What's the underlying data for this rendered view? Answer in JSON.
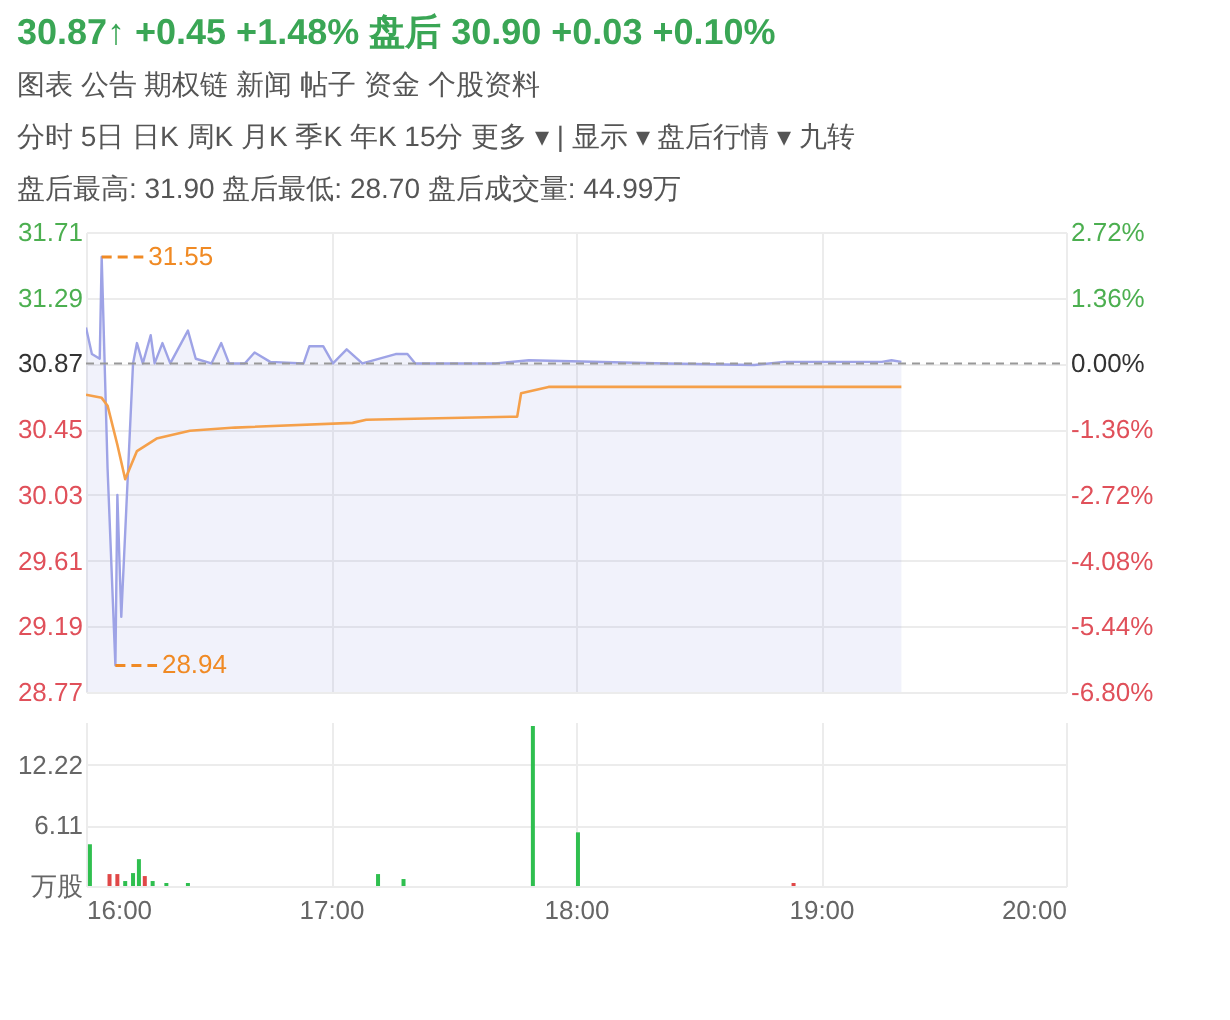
{
  "chart_data": [
    {
      "type": "line",
      "title": "30.87↑ +0.45 +1.48%   盘后 30.90 +0.03 +0.10%",
      "annotations": [
        "图表    公告    期权链    新闻    帖子    资金    个股资料",
        "分时   5日   日K   周K   月K   季K   年K   15分   更多 ▾   |   显示 ▾   盘后行情 ▾   九转",
        "盘后最高:  31.90      盘后最低:  28.70      盘后成交量:  44.99万",
        {
          "text": "31.55",
          "x": 16.064,
          "y": 31.55
        },
        {
          "text": "28.94",
          "x": 16.12,
          "y": 28.94
        }
      ],
      "xlim": [
        16,
        20
      ],
      "xticks": [
        {
          "value": 16,
          "label": null
        },
        {
          "value": 17,
          "label": null
        },
        {
          "value": 18,
          "label": null
        },
        {
          "value": 19,
          "label": null
        },
        {
          "value": 20,
          "label": null
        }
      ],
      "ylim": [
        28.77,
        31.71
      ],
      "yticks": [
        28.77,
        29.19,
        29.61,
        30.03,
        30.45,
        30.87,
        31.29,
        31.71
      ],
      "y2lim": [
        -6.8,
        2.72
      ],
      "y2ticks": [
        {
          "value": -6.8,
          "label": "-6.80%"
        },
        {
          "value": -5.44,
          "label": "-5.44%"
        },
        {
          "value": -4.08,
          "label": "-4.08%"
        },
        {
          "value": -2.72,
          "label": "-2.72%"
        },
        {
          "value": -1.36,
          "label": "-1.36%"
        },
        {
          "value": 0,
          "label": "0.00%"
        },
        {
          "value": 1.36,
          "label": "1.36%"
        },
        {
          "value": 2.72,
          "label": "2.72%"
        }
      ],
      "ref_lines": [
        {
          "axis": "y2",
          "value": 0,
          "color": "#999999",
          "line_style": "dashed"
        }
      ],
      "tick_labels": "y",
      "grid": true,
      "series": [
        {
          "type": "area",
          "color": "#9ea3e6",
          "x": [
            16.0,
            16.024,
            16.056,
            16.064,
            16.088,
            16.12,
            16.128,
            16.144,
            16.192,
            16.208,
            16.232,
            16.264,
            16.28,
            16.312,
            16.344,
            16.416,
            16.448,
            16.512,
            16.552,
            16.584,
            16.648,
            16.688,
            16.752,
            16.888,
            16.912,
            16.968,
            17.008,
            17.064,
            17.128,
            17.264,
            17.312,
            17.344,
            17.672,
            17.808,
            18.368,
            18.728,
            18.848,
            19.248,
            19.288,
            19.328
          ],
          "values": [
            31.1,
            30.93,
            30.9,
            31.55,
            30.2,
            28.94,
            30.03,
            29.25,
            30.87,
            31.0,
            30.87,
            31.05,
            30.87,
            31.0,
            30.87,
            31.08,
            30.9,
            30.87,
            31.0,
            30.87,
            30.87,
            30.94,
            30.88,
            30.87,
            30.98,
            30.98,
            30.87,
            30.96,
            30.87,
            30.93,
            30.93,
            30.87,
            30.87,
            30.89,
            30.87,
            30.86,
            30.88,
            30.88,
            30.89,
            30.88
          ]
        },
        {
          "type": "line",
          "color": "#f5a04a",
          "x": [
            16.0,
            16.064,
            16.088,
            16.128,
            16.16,
            16.208,
            16.288,
            16.424,
            16.608,
            17.088,
            17.144,
            17.76,
            17.776,
            17.888,
            19.328
          ],
          "values": [
            30.67,
            30.65,
            30.6,
            30.35,
            30.13,
            30.31,
            30.39,
            30.44,
            30.46,
            30.49,
            30.51,
            30.53,
            30.68,
            30.72,
            30.72
          ]
        }
      ]
    },
    {
      "type": "bar",
      "xlim": [
        16,
        20
      ],
      "xticks": [
        {
          "value": 16,
          "label": "16:00"
        },
        {
          "value": 17,
          "label": "17:00"
        },
        {
          "value": 18,
          "label": "18:00"
        },
        {
          "value": 19,
          "label": "19:00"
        },
        {
          "value": 20,
          "label": "20:00"
        }
      ],
      "ylim": [
        0,
        16.5
      ],
      "yticks": [
        {
          "value": 0,
          "label": "万股"
        },
        6.11,
        12.22
      ],
      "grid": true,
      "x": [
        16.016,
        16.096,
        16.128,
        16.16,
        16.192,
        16.216,
        16.24,
        16.272,
        16.328,
        16.416,
        17.192,
        17.296,
        17.824,
        18.008,
        18.888
      ],
      "values": [
        4.2,
        1.2,
        1.2,
        0.5,
        1.3,
        2.7,
        1.0,
        0.5,
        0.3,
        0.3,
        1.2,
        0.7,
        16.1,
        5.4,
        0.3
      ],
      "colors": [
        "#2fbf4f",
        "#e04848",
        "#e04848",
        "#2fbf4f",
        "#2fbf4f",
        "#2fbf4f",
        "#e04848",
        "#2fbf4f",
        "#2fbf4f",
        "#2fbf4f",
        "#2fbf4f",
        "#2fbf4f",
        "#2fbf4f",
        "#2fbf4f",
        "#e04848"
      ]
    }
  ]
}
